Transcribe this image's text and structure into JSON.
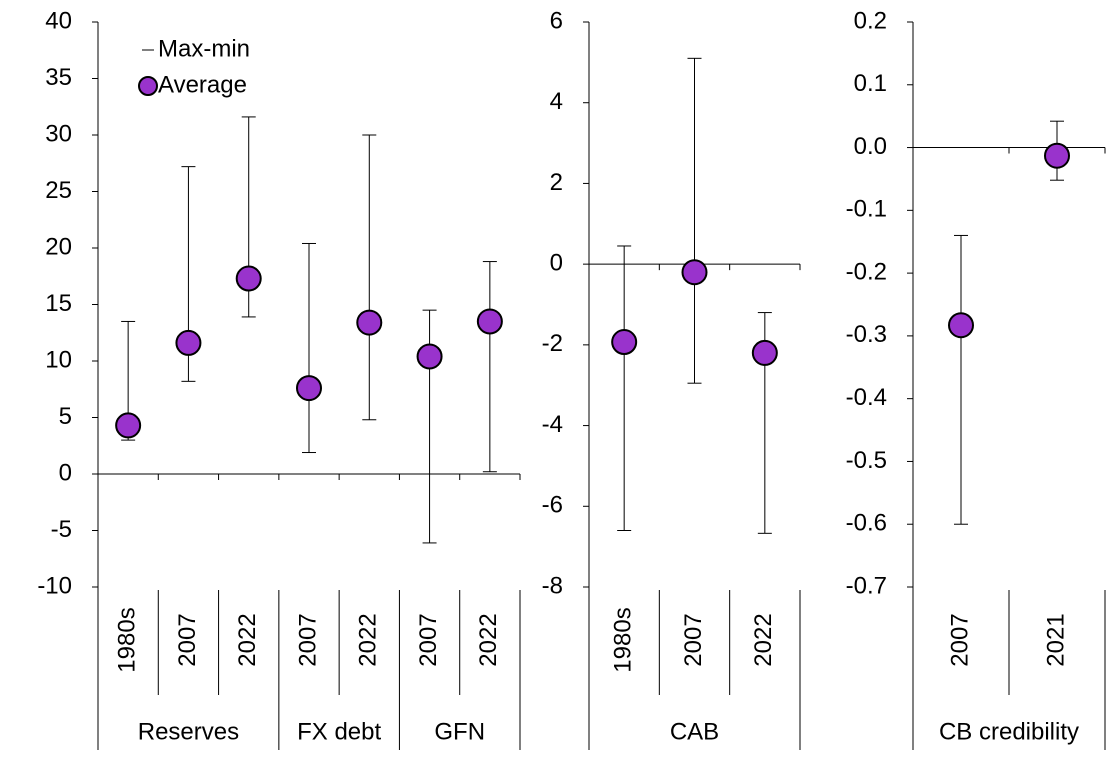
{
  "chart_data": [
    {
      "type": "errorbar",
      "categories": [
        "1980s",
        "2007",
        "2022",
        "2007",
        "2022",
        "2007",
        "2022"
      ],
      "category_groups": [
        "Reserves",
        "Reserves",
        "Reserves",
        "FX debt",
        "FX debt",
        "GFN",
        "GFN"
      ],
      "series": [
        {
          "name": "Max-min",
          "color": "#000000",
          "max": [
            13.5,
            27.2,
            31.6,
            20.4,
            30.0,
            14.5,
            18.8
          ],
          "min": [
            3.0,
            8.2,
            13.9,
            1.9,
            4.8,
            -6.1,
            0.2
          ]
        },
        {
          "name": "Average",
          "color": "#9933cc",
          "values": [
            4.3,
            11.6,
            17.3,
            7.6,
            13.4,
            10.4,
            13.5
          ]
        }
      ],
      "ylim": [
        -10,
        40
      ],
      "yticks": [
        -10,
        -5,
        0,
        5,
        10,
        15,
        20,
        25,
        30,
        35,
        40
      ],
      "legend": "upper left"
    },
    {
      "type": "errorbar",
      "categories": [
        "1980s",
        "2007",
        "2022"
      ],
      "category_groups": [
        "CAB",
        "CAB",
        "CAB"
      ],
      "series": [
        {
          "color": "#000000",
          "max": [
            0.45,
            5.1,
            -1.2
          ],
          "min": [
            -6.6,
            -2.95,
            -6.67
          ]
        },
        {
          "color": "#9933cc",
          "values": [
            -1.93,
            -0.2,
            -2.2
          ]
        }
      ],
      "ylim": [
        -8,
        6
      ],
      "yticks": [
        -8,
        -6,
        -4,
        -2,
        0,
        2,
        4,
        6
      ]
    },
    {
      "type": "errorbar",
      "categories": [
        "2007",
        "2021"
      ],
      "category_groups": [
        "CB credibility",
        "CB credibility"
      ],
      "series": [
        {
          "color": "#000000",
          "max": [
            -0.14,
            0.042
          ],
          "min": [
            -0.6,
            -0.052
          ]
        },
        {
          "color": "#9933cc",
          "values": [
            -0.283,
            -0.013
          ]
        }
      ],
      "ylim": [
        -0.7,
        0.2
      ],
      "yticks": [
        -0.7,
        -0.6,
        -0.5,
        -0.4,
        -0.3,
        -0.2,
        -0.1,
        {
          "value": 0,
          "label": "0.0"
        },
        0.1,
        0.2
      ]
    }
  ]
}
